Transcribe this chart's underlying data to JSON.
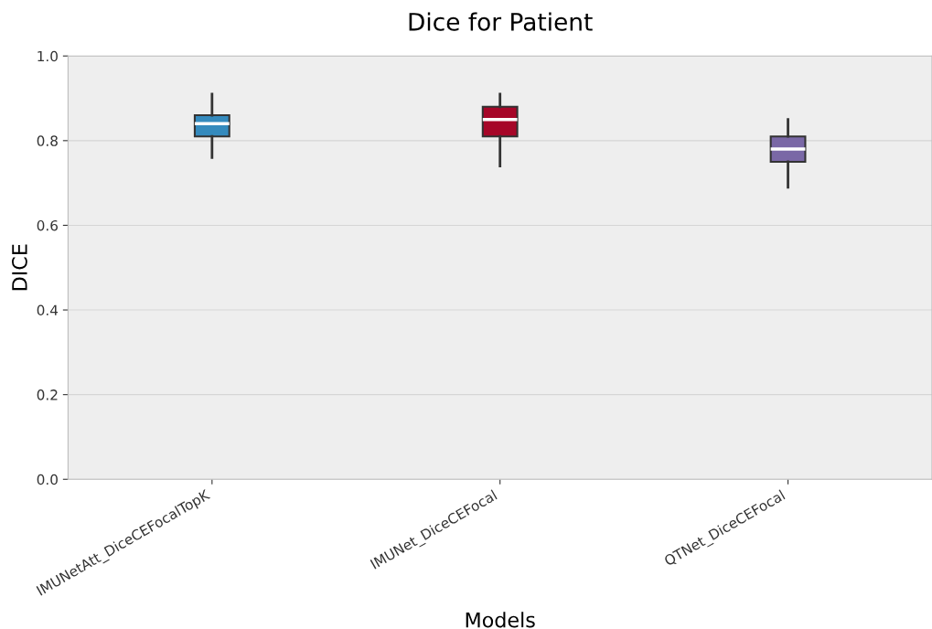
{
  "chart_data": {
    "type": "box",
    "title": "Dice for Patient",
    "xlabel": "Models",
    "ylabel": "DICE",
    "categories": [
      "IMUNetAtt_DiceCEFocalTopK",
      "IMUNet_DiceCEFocal",
      "QTNet_DiceCEFocal"
    ],
    "colors": [
      "#348abd",
      "#a60628",
      "#7a68a6"
    ],
    "boxes": [
      {
        "low": 0.76,
        "q1": 0.81,
        "median": 0.84,
        "q3": 0.86,
        "high": 0.91
      },
      {
        "low": 0.74,
        "q1": 0.81,
        "median": 0.85,
        "q3": 0.88,
        "high": 0.91
      },
      {
        "low": 0.69,
        "q1": 0.75,
        "median": 0.78,
        "q3": 0.81,
        "high": 0.85
      }
    ],
    "ylim": [
      0,
      1
    ],
    "yticks": [
      {
        "value": 0,
        "label": "0.0"
      },
      0.2,
      0.4,
      0.6,
      0.8,
      {
        "value": 1,
        "label": "1.0"
      }
    ],
    "grid": "y"
  }
}
